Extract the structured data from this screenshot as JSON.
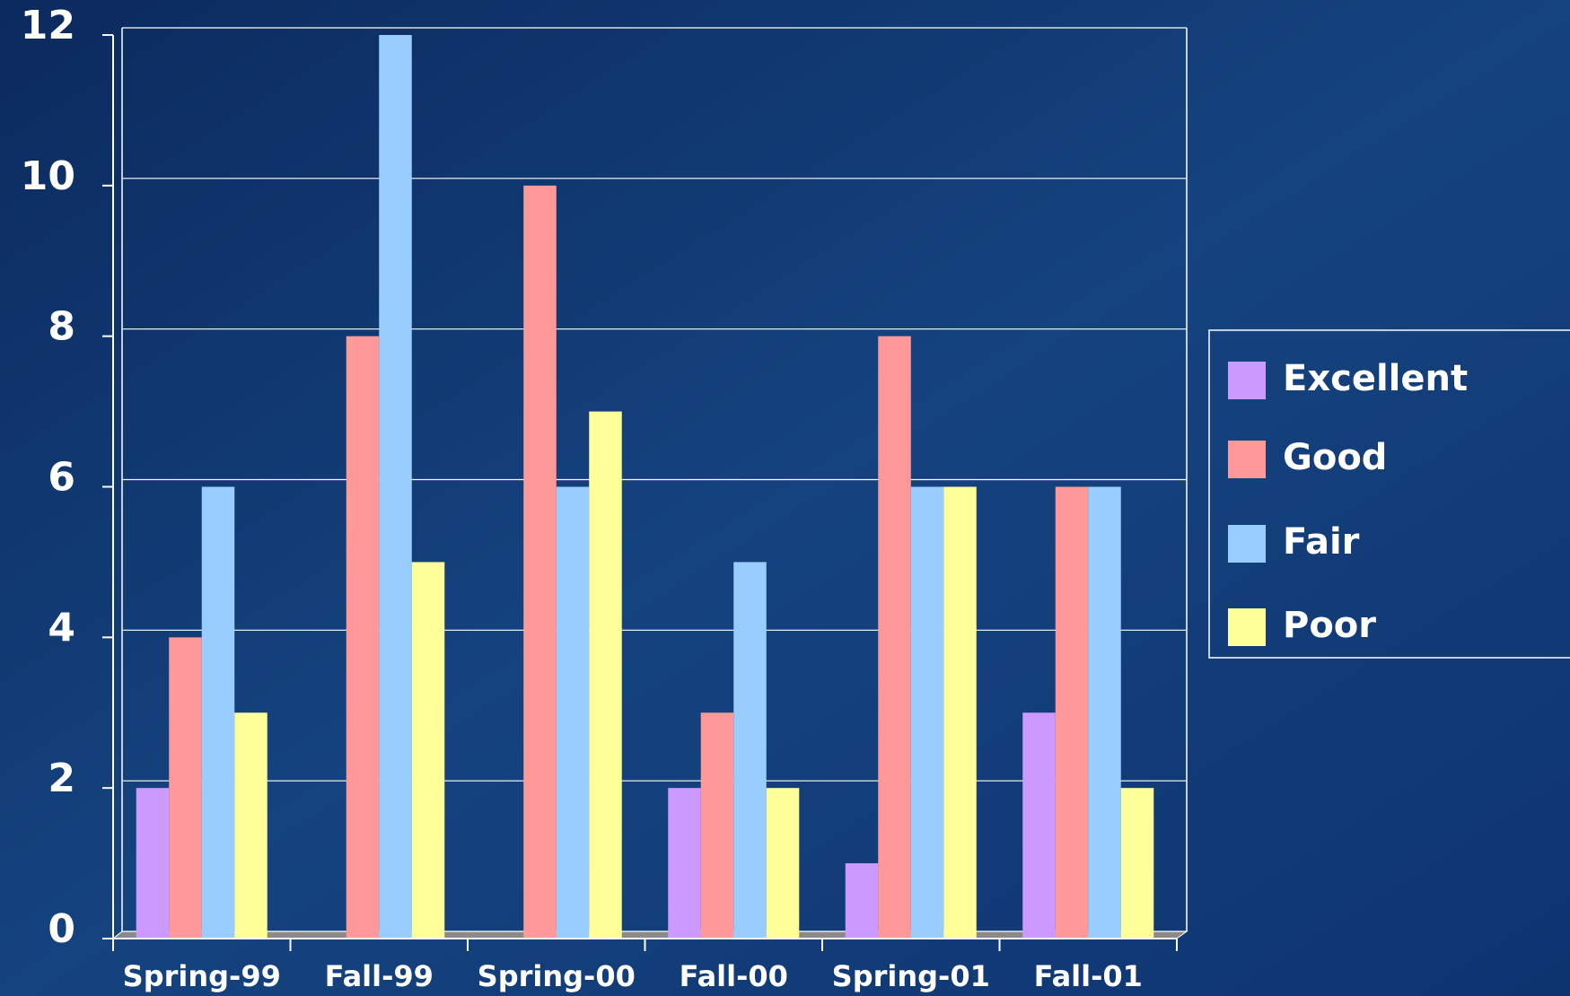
{
  "chart_data": {
    "type": "bar",
    "categories": [
      "Spring-99",
      "Fall-99",
      "Spring-00",
      "Fall-00",
      "Spring-01",
      "Fall-01"
    ],
    "series": [
      {
        "name": "Excellent",
        "color": "#cc99ff",
        "values": [
          2,
          0,
          0,
          2,
          1,
          3
        ]
      },
      {
        "name": "Good",
        "color": "#ff9999",
        "values": [
          4,
          8,
          10,
          3,
          8,
          6
        ]
      },
      {
        "name": "Fair",
        "color": "#99ccff",
        "values": [
          6,
          12,
          6,
          5,
          6,
          6
        ]
      },
      {
        "name": "Poor",
        "color": "#ffff99",
        "values": [
          3,
          5,
          7,
          2,
          6,
          2
        ]
      }
    ],
    "ylim": [
      0,
      12
    ],
    "yticks": [
      0,
      2,
      4,
      6,
      8,
      10,
      12
    ],
    "grid": true,
    "legend": "right"
  }
}
